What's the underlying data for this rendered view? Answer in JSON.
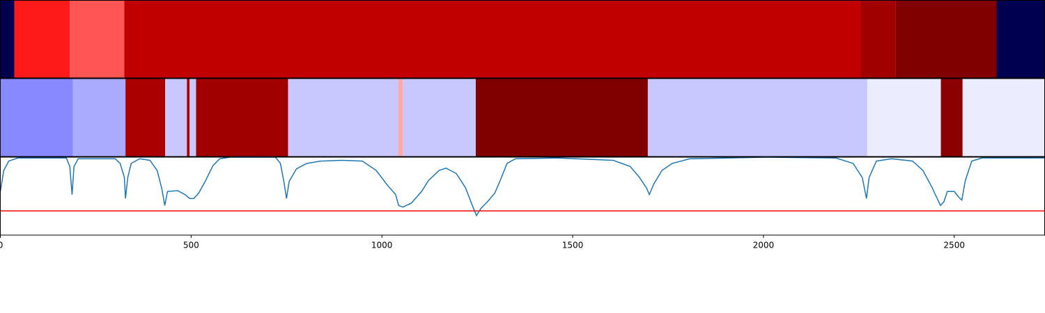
{
  "chart_data": [
    {
      "type": "strip",
      "xlim": [
        0,
        2737
      ],
      "bins": [
        0,
        36.5,
        182,
        325,
        2255,
        2347,
        2611,
        2737
      ],
      "colors": [
        "#000050",
        "#ff1a1a",
        "#ff5555",
        "#c00000",
        "#a00000",
        "#800000",
        "#000050"
      ]
    },
    {
      "type": "strip",
      "xlim": [
        0,
        2737
      ],
      "bins": [
        0,
        190,
        328,
        432,
        489,
        496,
        513,
        754,
        1042,
        1055,
        1246,
        1697,
        2272,
        2465,
        2522,
        2737
      ],
      "colors": [
        "#8888ff",
        "#aaaaff",
        "#aa0000",
        "#c8c8ff",
        "#aa0000",
        "#c8c8ff",
        "#a00000",
        "#c8c8ff",
        "#ffaaaa",
        "#c8c8ff",
        "#800000",
        "#c8c8ff",
        "#ececff",
        "#8b0000",
        "#ececff"
      ]
    },
    {
      "type": "line",
      "xlim": [
        0,
        2737
      ],
      "ylim": [
        0,
        1
      ],
      "color": "#1f77b4",
      "xticks": [
        0,
        500,
        1000,
        1500,
        2000,
        2500
      ],
      "threshold": 0.31,
      "threshold_color": "#ff0000",
      "x": [
        0,
        9,
        22,
        46,
        173,
        182,
        188,
        193,
        204,
        301,
        314,
        325,
        328,
        334,
        343,
        365,
        392,
        411,
        423,
        431,
        438,
        465,
        484,
        496,
        507,
        520,
        538,
        557,
        575,
        602,
        721,
        734,
        743,
        750,
        757,
        776,
        803,
        839,
        894,
        949,
        985,
        1013,
        1036,
        1044,
        1055,
        1077,
        1104,
        1122,
        1150,
        1168,
        1195,
        1219,
        1237,
        1248,
        1259,
        1277,
        1296,
        1310,
        1328,
        1350,
        1460,
        1606,
        1651,
        1675,
        1693,
        1701,
        1712,
        1734,
        1761,
        1807,
        2007,
        2190,
        2235,
        2259,
        2270,
        2277,
        2296,
        2336,
        2391,
        2418,
        2442,
        2464,
        2473,
        2482,
        2500,
        2515,
        2520,
        2529,
        2546,
        2573,
        2737
      ],
      "values": [
        0.56,
        0.83,
        0.95,
        0.99,
        0.99,
        0.88,
        0.52,
        0.88,
        0.98,
        0.98,
        0.92,
        0.74,
        0.47,
        0.74,
        0.92,
        0.98,
        0.96,
        0.83,
        0.6,
        0.38,
        0.56,
        0.57,
        0.52,
        0.47,
        0.47,
        0.54,
        0.7,
        0.89,
        0.98,
        1.0,
        1.0,
        0.92,
        0.69,
        0.47,
        0.69,
        0.85,
        0.92,
        0.95,
        0.96,
        0.95,
        0.83,
        0.65,
        0.52,
        0.38,
        0.36,
        0.41,
        0.56,
        0.7,
        0.83,
        0.86,
        0.79,
        0.61,
        0.38,
        0.25,
        0.34,
        0.43,
        0.54,
        0.7,
        0.92,
        0.98,
        0.99,
        0.96,
        0.88,
        0.74,
        0.61,
        0.52,
        0.65,
        0.83,
        0.92,
        0.98,
        1.0,
        0.99,
        0.92,
        0.74,
        0.47,
        0.74,
        0.95,
        0.98,
        0.95,
        0.83,
        0.61,
        0.38,
        0.43,
        0.56,
        0.56,
        0.47,
        0.45,
        0.7,
        0.95,
        0.99,
        0.99
      ]
    }
  ]
}
